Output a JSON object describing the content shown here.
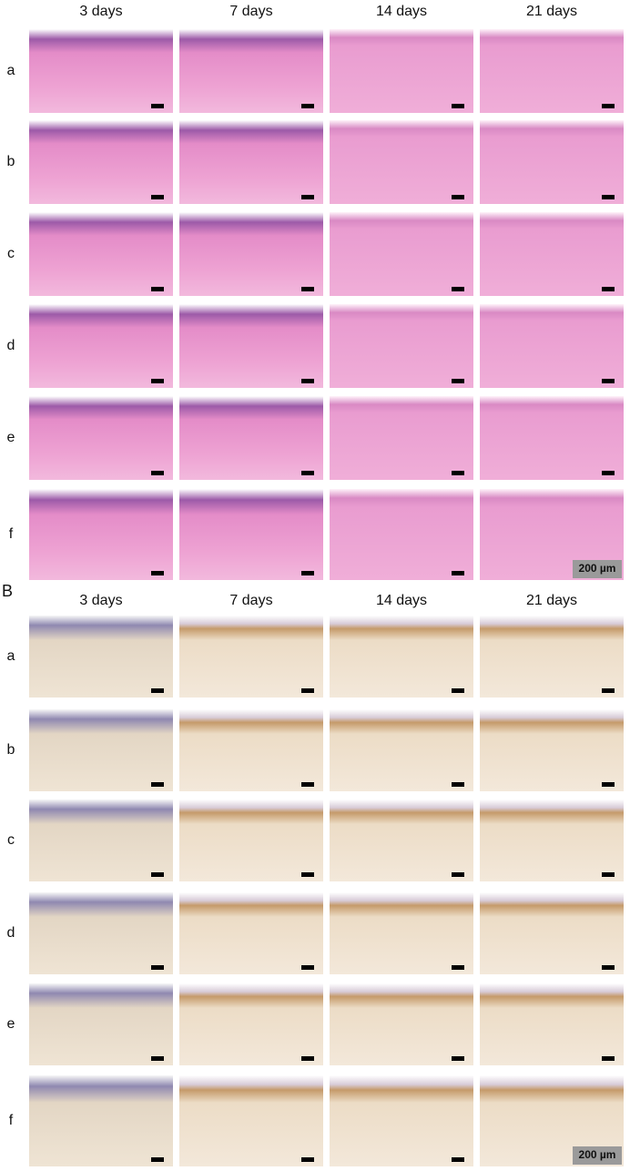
{
  "panel_a": {
    "columns": [
      "3 days",
      "7 days",
      "14 days",
      "21 days"
    ],
    "rows": [
      "a",
      "b",
      "c",
      "d",
      "e",
      "f"
    ],
    "scale": "200 µm"
  },
  "panel_b": {
    "label": "B",
    "columns": [
      "3 days",
      "7 days",
      "14 days",
      "21 days"
    ],
    "rows": [
      "a",
      "b",
      "c",
      "d",
      "e",
      "f"
    ],
    "scale": "200 µm"
  }
}
